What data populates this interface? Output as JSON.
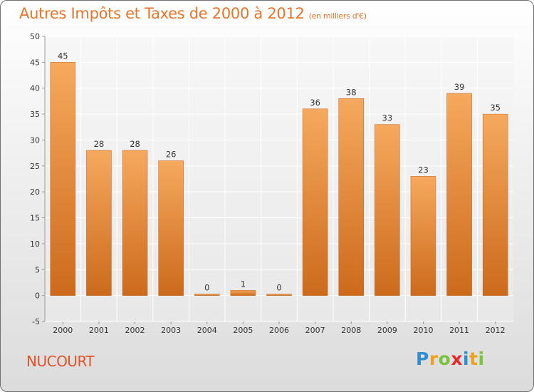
{
  "title": "Autres Impôts et Taxes de 2000 à 2012",
  "subtitle": "(en milliers d'€)",
  "commune": "NUCOURT",
  "logo": {
    "text": "Proxiti",
    "letters": [
      "P",
      "r",
      "o",
      "x",
      "i",
      "t",
      "i"
    ],
    "colors": [
      "#2f8fd0",
      "#f0a020",
      "#7cc242",
      "#e8282a",
      "#2f8fd0",
      "#f0a020",
      "#7cc242"
    ]
  },
  "chart_data": {
    "type": "bar",
    "categories": [
      "2000",
      "2001",
      "2002",
      "2003",
      "2004",
      "2005",
      "2006",
      "2007",
      "2008",
      "2009",
      "2010",
      "2011",
      "2012"
    ],
    "values": [
      45,
      28,
      28,
      26,
      0,
      1,
      0,
      36,
      38,
      33,
      23,
      39,
      35
    ],
    "title": "Autres Impôts et Taxes de 2000 à 2012",
    "ylim": [
      -5,
      50
    ],
    "yticks": [
      -5,
      0,
      5,
      10,
      15,
      20,
      25,
      30,
      35,
      40,
      45,
      50
    ],
    "grid": true,
    "legend": "none",
    "bar_color": "#f0903a"
  }
}
